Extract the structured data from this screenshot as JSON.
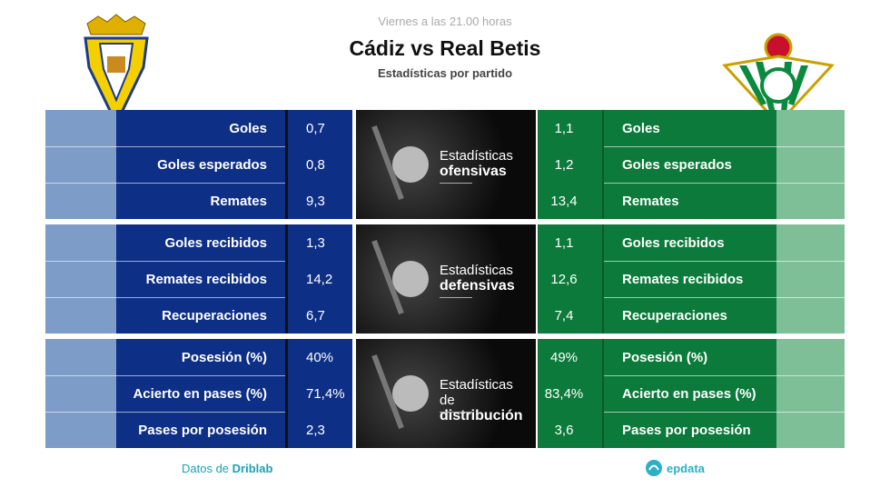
{
  "header": {
    "kicker": "Viernes a las 21.00 horas",
    "title": "Cádiz vs Real Betis",
    "subtitle": "Estadísticas por partido"
  },
  "groups": [
    {
      "section": {
        "line1": "Estadísticas",
        "line2": "ofensivas"
      },
      "rows": [
        {
          "label": "Goles",
          "home": "0,7",
          "away": "1,1"
        },
        {
          "label": "Goles esperados",
          "home": "0,8",
          "away": "1,2"
        },
        {
          "label": "Remates",
          "home": "9,3",
          "away": "13,4"
        }
      ]
    },
    {
      "section": {
        "line1": "Estadísticas",
        "line2": "defensivas"
      },
      "rows": [
        {
          "label": "Goles recibidos",
          "home": "1,3",
          "away": "1,1"
        },
        {
          "label": "Remates recibidos",
          "home": "14,2",
          "away": "12,6"
        },
        {
          "label": "Recuperaciones",
          "home": "6,7",
          "away": "7,4"
        }
      ]
    },
    {
      "section": {
        "line1": "Estadísticas de",
        "line2": "distribución"
      },
      "rows": [
        {
          "label": "Posesión (%)",
          "home": "40%",
          "away": "49%"
        },
        {
          "label": "Acierto en pases (%)",
          "home": "71,4%",
          "away": "83,4%"
        },
        {
          "label": "Pases por posesión",
          "home": "2,3",
          "away": "3,6"
        }
      ]
    }
  ],
  "footer": {
    "source_prefix": "Datos de",
    "source": "Driblab",
    "brand": "epdata"
  }
}
